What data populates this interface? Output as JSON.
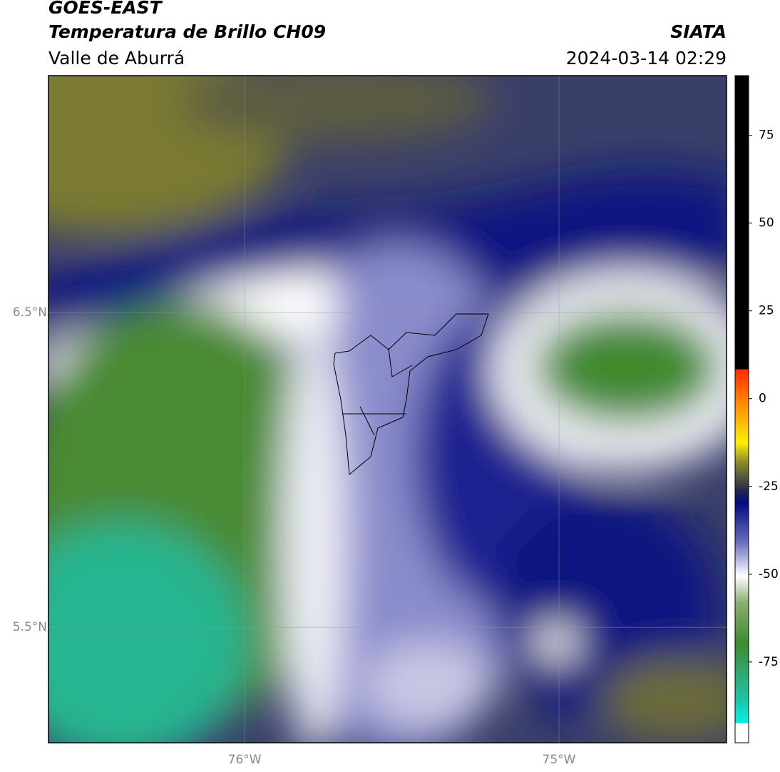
{
  "header": {
    "title": "GOES-EAST",
    "subtitle": "Temperatura de Brillo CH09",
    "region": "Valle de Aburrá",
    "source": "SIATA",
    "datetime": "2024-03-14 02:29"
  },
  "map": {
    "lonlim": [
      -76.624,
      -74.467
    ],
    "latlim": [
      5.133,
      7.253
    ],
    "lat_ticks": [
      {
        "value": 6.5,
        "label": "6.5°N"
      },
      {
        "value": 5.5,
        "label": "5.5°N"
      }
    ],
    "lon_ticks": [
      {
        "value": -76,
        "label": "76°W"
      },
      {
        "value": -75,
        "label": "75°W"
      }
    ],
    "grid": true
  },
  "colorbar": {
    "range": [
      -98,
      92
    ],
    "ticks": [
      75,
      50,
      25,
      0,
      -25,
      -50,
      -75
    ]
  }
}
